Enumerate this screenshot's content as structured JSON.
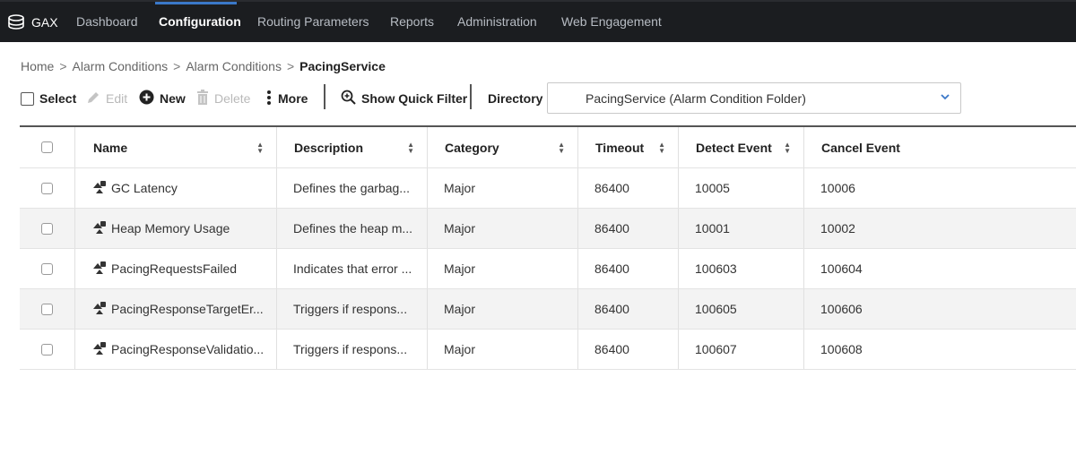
{
  "app": {
    "brand": "GAX"
  },
  "nav": {
    "items": [
      {
        "label": "Dashboard",
        "active": false
      },
      {
        "label": "Configuration",
        "active": true
      },
      {
        "label": "Routing Parameters",
        "active": false
      },
      {
        "label": "Reports",
        "active": false
      },
      {
        "label": "Administration",
        "active": false
      },
      {
        "label": "Web Engagement",
        "active": false
      }
    ]
  },
  "breadcrumb": {
    "items": [
      "Home",
      "Alarm Conditions",
      "Alarm Conditions"
    ],
    "separator": ">",
    "current": "PacingService"
  },
  "toolbar": {
    "select_label": "Select",
    "edit_label": "Edit",
    "new_label": "New",
    "delete_label": "Delete",
    "more_label": "More",
    "quick_filter_label": "Show Quick Filter",
    "directory_label": "Directory",
    "directory_value": "PacingService (Alarm Condition Folder)"
  },
  "table": {
    "columns": [
      "Name",
      "Description",
      "Category",
      "Timeout",
      "Detect Event",
      "Cancel Event"
    ],
    "rows": [
      {
        "name": "GC Latency",
        "description": "Defines the garbag...",
        "category": "Major",
        "timeout": "86400",
        "detect": "10005",
        "cancel": "10006"
      },
      {
        "name": "Heap Memory Usage",
        "description": "Defines the heap m...",
        "category": "Major",
        "timeout": "86400",
        "detect": "10001",
        "cancel": "10002"
      },
      {
        "name": "PacingRequestsFailed",
        "description": "Indicates that error ...",
        "category": "Major",
        "timeout": "86400",
        "detect": "100603",
        "cancel": "100604"
      },
      {
        "name": "PacingResponseTargetEr...",
        "description": "Triggers if respons...",
        "category": "Major",
        "timeout": "86400",
        "detect": "100605",
        "cancel": "100606"
      },
      {
        "name": "PacingResponseValidatio...",
        "description": "Triggers if respons...",
        "category": "Major",
        "timeout": "86400",
        "detect": "100607",
        "cancel": "100608"
      }
    ]
  },
  "colors": {
    "nav_bg": "#1b1d20",
    "accent": "#3a78c8",
    "row_alt": "#f3f3f3"
  },
  "icons": {
    "brand": "database-icon",
    "edit": "pencil-icon",
    "new": "plus-circle-icon",
    "delete": "trash-icon",
    "more": "vertical-dots-icon",
    "filter": "zoom-icon",
    "chevron": "chevron-down-icon",
    "row": "alarm-condition-icon"
  }
}
